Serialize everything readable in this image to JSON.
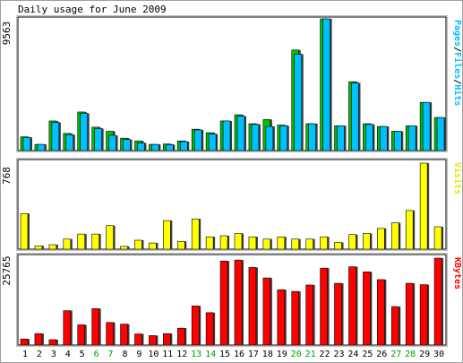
{
  "chart_data": [
    {
      "type": "bar",
      "title": "Daily usage for June 2009",
      "panel": "hits",
      "ylabel_parts": [
        {
          "text": "Pages",
          "color": "#00C0FF"
        },
        {
          "text": "/",
          "color": "#000000"
        },
        {
          "text": "Files",
          "color": "#00C0FF"
        },
        {
          "text": "/",
          "color": "#000000"
        },
        {
          "text": "Hits",
          "color": "#00C0FF"
        }
      ],
      "ymax_label": "9563",
      "ylim": [
        0,
        9563
      ],
      "series": [
        {
          "name": "Hits",
          "color": "#00C000",
          "values": [
            1000,
            450,
            2150,
            1250,
            2800,
            1700,
            1400,
            900,
            700,
            450,
            480,
            700,
            1550,
            1300,
            2150,
            2600,
            1950,
            2250,
            1850,
            7300,
            1950,
            9563,
            1800,
            5000,
            1950,
            1750,
            1400,
            1800,
            3500,
            2400
          ]
        },
        {
          "name": "Files",
          "color": "#00C0FF",
          "values": [
            950,
            450,
            2050,
            1150,
            2700,
            1600,
            1100,
            800,
            550,
            450,
            430,
            650,
            1500,
            1200,
            2150,
            2500,
            1900,
            1750,
            1800,
            7000,
            1950,
            9563,
            1800,
            4900,
            1900,
            1750,
            1400,
            1800,
            3500,
            2400
          ]
        }
      ]
    },
    {
      "type": "bar",
      "panel": "visits",
      "ylabel": "Visits",
      "ymax_label": "768",
      "ylim": [
        0,
        768
      ],
      "series": [
        {
          "name": "Visits",
          "color": "#FFFF00",
          "values": [
            318,
            30,
            40,
            90,
            135,
            135,
            210,
            25,
            80,
            55,
            255,
            70,
            270,
            110,
            120,
            140,
            110,
            90,
            110,
            90,
            90,
            110,
            60,
            130,
            140,
            185,
            235,
            345,
            768,
            200
          ]
        }
      ]
    },
    {
      "type": "bar",
      "panel": "kbytes",
      "ylabel": "KBytes",
      "ymax_label": "25765",
      "ylim": [
        0,
        25765
      ],
      "categories": [
        "1",
        "2",
        "3",
        "4",
        "5",
        "6",
        "7",
        "8",
        "9",
        "10",
        "11",
        "12",
        "13",
        "14",
        "15",
        "16",
        "17",
        "18",
        "19",
        "20",
        "21",
        "22",
        "23",
        "24",
        "25",
        "26",
        "27",
        "28",
        "29",
        "30"
      ],
      "weekend_days": [
        "6",
        "7",
        "13",
        "14",
        "20",
        "21",
        "27",
        "28"
      ],
      "weekday_color": "#000000",
      "weekend_color": "#00A000",
      "series": [
        {
          "name": "KBytes",
          "color": "#FF0000",
          "values": [
            1800,
            3400,
            1600,
            10200,
            6000,
            10800,
            6700,
            6200,
            3300,
            2800,
            3400,
            5000,
            11600,
            9600,
            24900,
            25200,
            23000,
            19900,
            16400,
            15900,
            17800,
            22800,
            18300,
            23200,
            21700,
            19400,
            11400,
            18300,
            17900,
            25765
          ]
        }
      ]
    }
  ]
}
